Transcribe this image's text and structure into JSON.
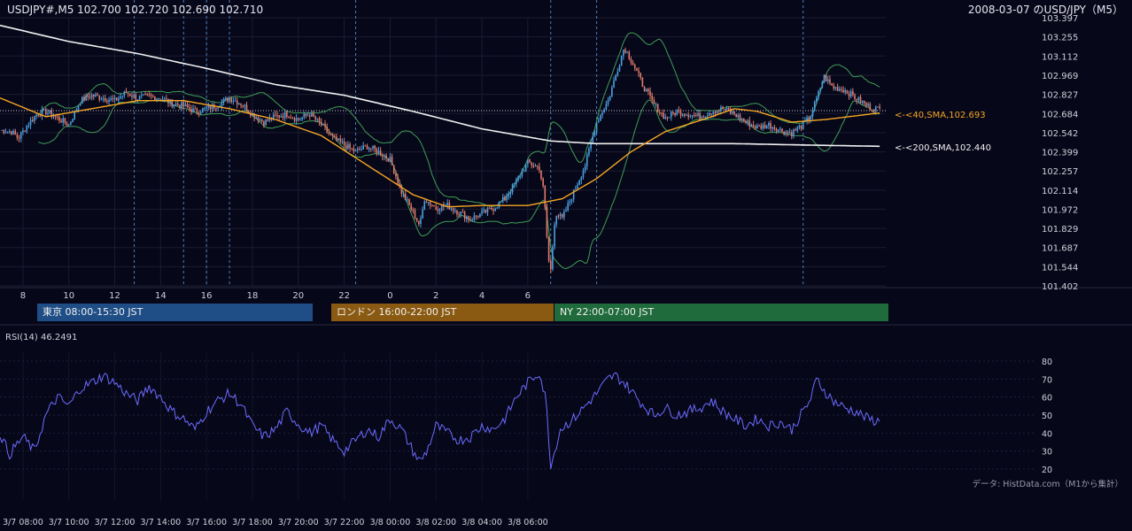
{
  "header": {
    "symbol_line": "USDJPY#,M5 102.700 102.720 102.690 102.710",
    "right_title": "2008-03-07 のUSD/JPY（M5）"
  },
  "colors": {
    "background": "#07071a",
    "candle_up": "#4a9fe0",
    "candle_down": "#e07b6a",
    "sma40": "#f5a623",
    "sma200": "#f0f0f0",
    "bollinger": "#3f9e55",
    "rsi": "#6b6bff",
    "session_tokyo": "#1f4e86",
    "session_london": "#8a5a12",
    "session_ny": "#1f6b3b"
  },
  "price_axis": {
    "ticks": [
      "103.397",
      "103.255",
      "103.112",
      "102.969",
      "102.827",
      "102.684",
      "102.542",
      "102.399",
      "102.257",
      "102.114",
      "101.972",
      "101.829",
      "101.687",
      "101.544",
      "101.402"
    ]
  },
  "hour_axis": {
    "ticks": [
      "8",
      "10",
      "12",
      "14",
      "16",
      "18",
      "20",
      "22",
      "0",
      "2",
      "4",
      "6"
    ]
  },
  "annotations": {
    "sma40": "<-<40,SMA,102.693",
    "sma200": "<-<200,SMA,102.440"
  },
  "sessions": [
    {
      "label": "東京 08:00-15:30 JST"
    },
    {
      "label": "ロンドン 16:00-22:00 JST"
    },
    {
      "label": "NY 22:00-07:00 JST"
    }
  ],
  "rsi": {
    "title": "RSI(14) 46.2491",
    "ticks": [
      "80",
      "70",
      "60",
      "50",
      "40",
      "30",
      "20"
    ]
  },
  "source": "データ: HistData.com（M1から集計）",
  "time_axis": {
    "ticks": [
      "3/7 08:00",
      "3/7 10:00",
      "3/7 12:00",
      "3/7 14:00",
      "3/7 16:00",
      "3/7 18:00",
      "3/7 20:00",
      "3/7 22:00",
      "3/8 00:00",
      "3/8 02:00",
      "3/8 04:00",
      "3/8 06:00"
    ]
  },
  "chart_data": [
    {
      "type": "candlestick",
      "title": "USDJPY#,M5",
      "x_unit": "hours since 3/7 07:00 JST",
      "ylim": [
        101.402,
        103.397
      ],
      "grid": true,
      "close_anchors": [
        [
          0,
          102.56
        ],
        [
          0.5,
          102.55
        ],
        [
          0.8,
          102.5
        ],
        [
          1.2,
          102.6
        ],
        [
          1.6,
          102.68
        ],
        [
          2.0,
          102.7
        ],
        [
          2.5,
          102.65
        ],
        [
          3.0,
          102.6
        ],
        [
          3.5,
          102.78
        ],
        [
          4.0,
          102.82
        ],
        [
          4.5,
          102.8
        ],
        [
          5.0,
          102.78
        ],
        [
          5.5,
          102.84
        ],
        [
          6.0,
          102.8
        ],
        [
          6.5,
          102.81
        ],
        [
          7.0,
          102.8
        ],
        [
          7.5,
          102.76
        ],
        [
          8.0,
          102.74
        ],
        [
          8.5,
          102.7
        ],
        [
          9.0,
          102.72
        ],
        [
          9.5,
          102.75
        ],
        [
          10.0,
          102.8
        ],
        [
          10.5,
          102.76
        ],
        [
          11.0,
          102.68
        ],
        [
          11.5,
          102.62
        ],
        [
          12.0,
          102.66
        ],
        [
          12.5,
          102.68
        ],
        [
          13.0,
          102.64
        ],
        [
          13.5,
          102.68
        ],
        [
          14.0,
          102.6
        ],
        [
          14.5,
          102.5
        ],
        [
          15.0,
          102.45
        ],
        [
          15.5,
          102.4
        ],
        [
          16.0,
          102.44
        ],
        [
          16.5,
          102.4
        ],
        [
          17.0,
          102.34
        ],
        [
          17.5,
          102.1
        ],
        [
          18.0,
          101.95
        ],
        [
          18.3,
          101.85
        ],
        [
          18.5,
          102.05
        ],
        [
          19.0,
          101.98
        ],
        [
          19.5,
          102.0
        ],
        [
          20.0,
          101.95
        ],
        [
          20.5,
          101.9
        ],
        [
          21.0,
          101.94
        ],
        [
          21.5,
          101.98
        ],
        [
          22.0,
          102.05
        ],
        [
          22.5,
          102.18
        ],
        [
          23.0,
          102.32
        ],
        [
          23.5,
          102.28
        ],
        [
          23.7,
          102.1
        ],
        [
          23.9,
          101.6
        ],
        [
          24.0,
          101.52
        ],
        [
          24.2,
          101.95
        ],
        [
          24.5,
          101.9
        ],
        [
          25.0,
          102.1
        ],
        [
          25.5,
          102.3
        ],
        [
          26.0,
          102.62
        ],
        [
          26.5,
          102.78
        ],
        [
          26.8,
          102.95
        ],
        [
          27.2,
          103.18
        ],
        [
          27.6,
          103.05
        ],
        [
          28.0,
          102.9
        ],
        [
          28.5,
          102.75
        ],
        [
          29.0,
          102.65
        ],
        [
          29.5,
          102.7
        ],
        [
          30.0,
          102.68
        ],
        [
          30.5,
          102.66
        ],
        [
          31.0,
          102.7
        ],
        [
          31.5,
          102.72
        ],
        [
          32.0,
          102.68
        ],
        [
          32.5,
          102.62
        ],
        [
          33.0,
          102.58
        ],
        [
          33.5,
          102.6
        ],
        [
          34.0,
          102.56
        ],
        [
          34.5,
          102.54
        ],
        [
          35.0,
          102.6
        ],
        [
          35.3,
          102.66
        ],
        [
          35.6,
          102.8
        ],
        [
          35.9,
          102.96
        ],
        [
          36.3,
          102.88
        ],
        [
          36.8,
          102.86
        ],
        [
          37.3,
          102.8
        ],
        [
          37.8,
          102.74
        ],
        [
          38.4,
          102.71
        ]
      ]
    },
    {
      "type": "line",
      "title": "<-<40,SMA,102.693",
      "x_unit": "hours since 3/7 07:00 JST",
      "anchors": [
        [
          0,
          102.8
        ],
        [
          2,
          102.66
        ],
        [
          4,
          102.72
        ],
        [
          6,
          102.78
        ],
        [
          8,
          102.78
        ],
        [
          10,
          102.72
        ],
        [
          12,
          102.64
        ],
        [
          14,
          102.52
        ],
        [
          16,
          102.3
        ],
        [
          18,
          102.08
        ],
        [
          19.5,
          101.99
        ],
        [
          21,
          102.0
        ],
        [
          23,
          102.0
        ],
        [
          24.5,
          102.05
        ],
        [
          26,
          102.2
        ],
        [
          27.5,
          102.4
        ],
        [
          29,
          102.55
        ],
        [
          31,
          102.66
        ],
        [
          32,
          102.72
        ],
        [
          33,
          102.7
        ],
        [
          34.5,
          102.62
        ],
        [
          36,
          102.64
        ],
        [
          38.4,
          102.69
        ]
      ]
    },
    {
      "type": "line",
      "title": "<-<200,SMA,102.440",
      "x_unit": "hours since 3/7 07:00 JST",
      "anchors": [
        [
          0,
          103.34
        ],
        [
          3,
          103.22
        ],
        [
          6,
          103.13
        ],
        [
          9,
          103.02
        ],
        [
          12,
          102.9
        ],
        [
          15,
          102.82
        ],
        [
          18,
          102.7
        ],
        [
          21,
          102.57
        ],
        [
          24,
          102.48
        ],
        [
          26,
          102.46
        ],
        [
          29,
          102.46
        ],
        [
          32,
          102.46
        ],
        [
          35,
          102.45
        ],
        [
          38.4,
          102.44
        ]
      ]
    },
    {
      "type": "line",
      "title": "RSI(14) 46.2491",
      "x_unit": "hours since 3/7 07:00 JST",
      "ylim": [
        20,
        80
      ],
      "anchors": [
        [
          0,
          40
        ],
        [
          0.4,
          28
        ],
        [
          1.0,
          38
        ],
        [
          1.5,
          30
        ],
        [
          2.0,
          50
        ],
        [
          2.5,
          60
        ],
        [
          3.0,
          55
        ],
        [
          3.5,
          65
        ],
        [
          4.0,
          68
        ],
        [
          4.5,
          72
        ],
        [
          5.0,
          68
        ],
        [
          5.5,
          62
        ],
        [
          6.0,
          58
        ],
        [
          6.5,
          66
        ],
        [
          7.0,
          60
        ],
        [
          7.5,
          52
        ],
        [
          8.0,
          48
        ],
        [
          8.5,
          42
        ],
        [
          9.0,
          52
        ],
        [
          9.5,
          58
        ],
        [
          10.0,
          62
        ],
        [
          10.5,
          56
        ],
        [
          11.0,
          44
        ],
        [
          11.5,
          38
        ],
        [
          12.0,
          42
        ],
        [
          12.5,
          52
        ],
        [
          13.0,
          45
        ],
        [
          13.5,
          40
        ],
        [
          14.0,
          44
        ],
        [
          14.5,
          36
        ],
        [
          15.0,
          30
        ],
        [
          15.5,
          36
        ],
        [
          16.0,
          42
        ],
        [
          16.5,
          38
        ],
        [
          17.0,
          48
        ],
        [
          17.5,
          42
        ],
        [
          18.0,
          30
        ],
        [
          18.3,
          24
        ],
        [
          18.6,
          30
        ],
        [
          19.0,
          44
        ],
        [
          19.5,
          40
        ],
        [
          20.0,
          36
        ],
        [
          20.5,
          38
        ],
        [
          21.0,
          44
        ],
        [
          21.5,
          42
        ],
        [
          22.0,
          48
        ],
        [
          22.5,
          60
        ],
        [
          23.0,
          68
        ],
        [
          23.5,
          74
        ],
        [
          23.8,
          58
        ],
        [
          24.0,
          21
        ],
        [
          24.4,
          42
        ],
        [
          25.0,
          48
        ],
        [
          25.5,
          55
        ],
        [
          26.0,
          62
        ],
        [
          26.5,
          70
        ],
        [
          26.8,
          72
        ],
        [
          27.2,
          68
        ],
        [
          27.6,
          62
        ],
        [
          28.0,
          56
        ],
        [
          28.5,
          50
        ],
        [
          29.0,
          54
        ],
        [
          29.5,
          50
        ],
        [
          30.0,
          52
        ],
        [
          30.5,
          54
        ],
        [
          31.0,
          58
        ],
        [
          31.5,
          52
        ],
        [
          32.0,
          48
        ],
        [
          32.5,
          44
        ],
        [
          33.0,
          48
        ],
        [
          33.5,
          44
        ],
        [
          34.0,
          46
        ],
        [
          34.5,
          42
        ],
        [
          35.0,
          52
        ],
        [
          35.3,
          58
        ],
        [
          35.6,
          70
        ],
        [
          35.9,
          64
        ],
        [
          36.3,
          58
        ],
        [
          36.8,
          54
        ],
        [
          37.3,
          52
        ],
        [
          37.8,
          48
        ],
        [
          38.4,
          46
        ]
      ]
    }
  ]
}
